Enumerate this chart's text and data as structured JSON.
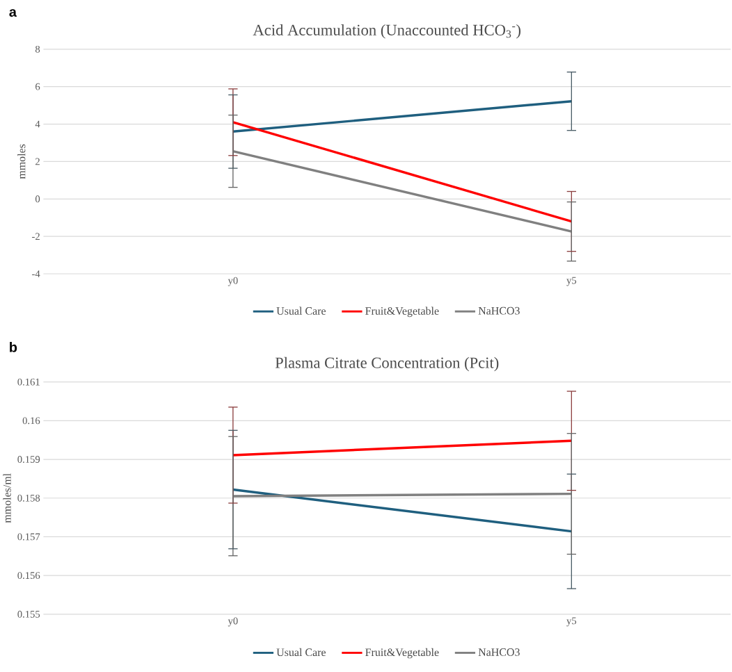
{
  "chart_data": [
    {
      "type": "line",
      "title": "Acid Accumulation (Unaccounted HCO$_{3}$$^{-}$)",
      "ylabel": "mmoles",
      "annotations": [
        "a"
      ],
      "categories": [
        "y0",
        "y5"
      ],
      "ylim": [
        -4,
        8
      ],
      "yticks": [
        -4,
        -2,
        0,
        2,
        4,
        6,
        8
      ],
      "grid": "y",
      "legend": "bottom",
      "marker": "none",
      "line_style": "solid",
      "series": [
        {
          "name": "Usual Care",
          "color": "#1f5f7f",
          "values": [
            3.6,
            5.22
          ],
          "errors": [
            1.96,
            1.56
          ]
        },
        {
          "name": "Fruit&Vegetable",
          "color": "#ff0000",
          "values": [
            4.1,
            -1.2
          ],
          "errors": [
            1.78,
            1.6
          ]
        },
        {
          "name": "NaHCO3",
          "color": "#808080",
          "values": [
            2.55,
            -1.74
          ],
          "errors": [
            1.93,
            1.58
          ]
        }
      ]
    },
    {
      "type": "line",
      "title": "Plasma Citrate Concentration (Pcit)",
      "ylabel": "mmoles/ml",
      "annotations": [
        "b"
      ],
      "categories": [
        "y0",
        "y5"
      ],
      "ylim": [
        0.155,
        0.161
      ],
      "yticks": [
        0.155,
        0.156,
        0.157,
        0.158,
        0.159,
        0.16,
        0.161
      ],
      "grid": "y",
      "legend": "bottom",
      "marker": "none",
      "line_style": "solid",
      "series": [
        {
          "name": "Usual Care",
          "color": "#1f5f7f",
          "values": [
            0.15822,
            0.15714
          ],
          "errors": [
            0.00153,
            0.00148
          ]
        },
        {
          "name": "Fruit&Vegetable",
          "color": "#ff0000",
          "values": [
            0.15911,
            0.15948
          ],
          "errors": [
            0.00124,
            0.00128
          ]
        },
        {
          "name": "NaHCO3",
          "color": "#808080",
          "values": [
            0.15805,
            0.15811
          ],
          "errors": [
            0.00154,
            0.00156
          ]
        }
      ]
    }
  ]
}
